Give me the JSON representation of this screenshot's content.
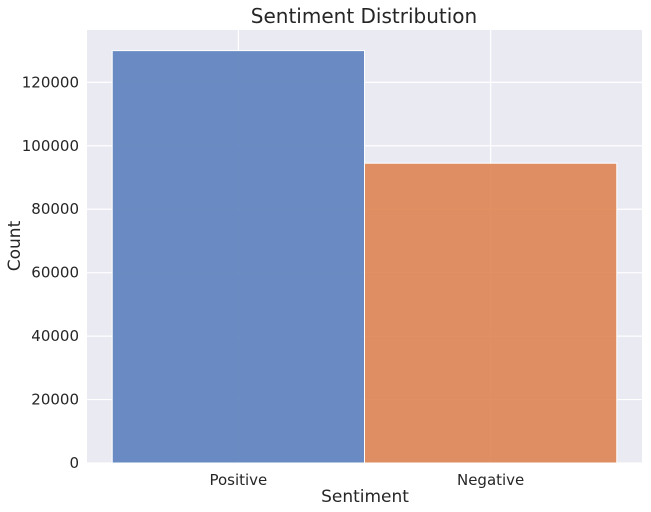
{
  "chart_data": {
    "type": "bar",
    "title": "Sentiment Distribution",
    "xlabel": "Sentiment",
    "ylabel": "Count",
    "categories": [
      "Positive",
      "Negative"
    ],
    "values": [
      130000,
      94500
    ],
    "colors": [
      "#5b7fbd",
      "#dd8452"
    ],
    "ylim": [
      0,
      136500
    ],
    "yticks": [
      0,
      20000,
      40000,
      60000,
      80000,
      100000,
      120000
    ],
    "ytick_labels": [
      "0",
      "20000",
      "40000",
      "60000",
      "80000",
      "100000",
      "120000"
    ],
    "grid": true,
    "legend": "none",
    "background": "#eaeaf2",
    "grid_color": "#ffffff"
  }
}
